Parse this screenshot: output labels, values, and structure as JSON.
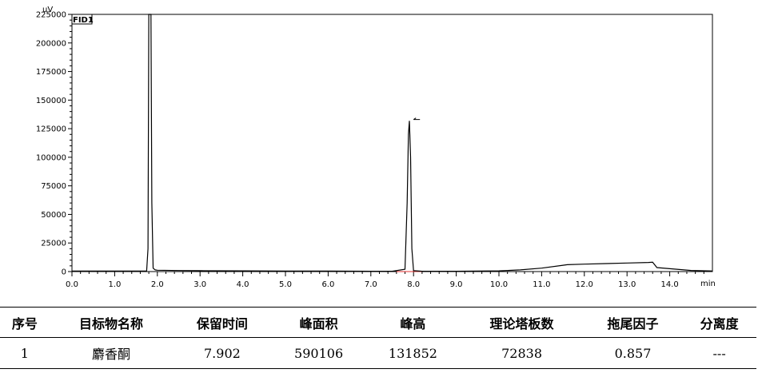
{
  "chart_data": {
    "type": "line",
    "ylabel": "uV",
    "xlabel": "min",
    "legend": "FID1",
    "legend_position": "top-left",
    "grid": false,
    "xlim": [
      0.0,
      15.0
    ],
    "ylim": [
      0,
      225000
    ],
    "x_ticks": [
      "0.0",
      "1.0",
      "2.0",
      "3.0",
      "4.0",
      "5.0",
      "6.0",
      "7.0",
      "8.0",
      "9.0",
      "10.0",
      "11.0",
      "12.0",
      "13.0",
      "14.0"
    ],
    "x_tick_values": [
      0,
      1,
      2,
      3,
      4,
      5,
      6,
      7,
      8,
      9,
      10,
      11,
      12,
      13,
      14
    ],
    "y_ticks": [
      "0",
      "25000",
      "50000",
      "75000",
      "100000",
      "125000",
      "150000",
      "175000",
      "200000",
      "225000"
    ],
    "y_tick_values": [
      0,
      25000,
      50000,
      75000,
      100000,
      125000,
      150000,
      175000,
      200000,
      225000
    ],
    "series": [
      {
        "x": [
          0.0,
          1.75,
          1.78,
          1.8,
          1.85,
          1.87,
          1.9,
          1.95,
          2.0,
          2.5,
          3.0,
          4.0,
          5.0,
          6.0,
          7.0,
          7.5,
          7.8,
          7.85,
          7.88,
          7.902,
          7.93,
          7.96,
          8.0,
          8.2,
          9.0,
          10.0,
          10.5,
          11.0,
          11.5,
          11.6,
          12.0,
          12.5,
          13.0,
          13.5,
          13.6,
          13.7,
          14.0,
          14.5,
          15.0
        ],
        "y": [
          500,
          500,
          20000,
          225000,
          225000,
          60000,
          3000,
          1500,
          1200,
          900,
          800,
          600,
          500,
          400,
          300,
          300,
          2000,
          60000,
          120000,
          131852,
          100000,
          20000,
          800,
          300,
          300,
          600,
          1500,
          3000,
          5500,
          6000,
          6500,
          7000,
          7500,
          8000,
          8200,
          3500,
          2500,
          1000,
          500
        ]
      }
    ],
    "annotation_line": {
      "x": [
        7.6,
        8.2
      ],
      "y": [
        0,
        0
      ],
      "color": "#e03030"
    },
    "peak_marker": {
      "x": 8.0,
      "y": 133000
    },
    "line_color": "#000000"
  },
  "table": {
    "headers": [
      "序号",
      "目标物名称",
      "保留时间",
      "峰面积",
      "峰高",
      "理论塔板数",
      "拖尾因子",
      "分离度"
    ],
    "rows": [
      [
        "1",
        "麝香酮",
        "7.902",
        "590106",
        "131852",
        "72838",
        "0.857",
        "---"
      ]
    ]
  }
}
